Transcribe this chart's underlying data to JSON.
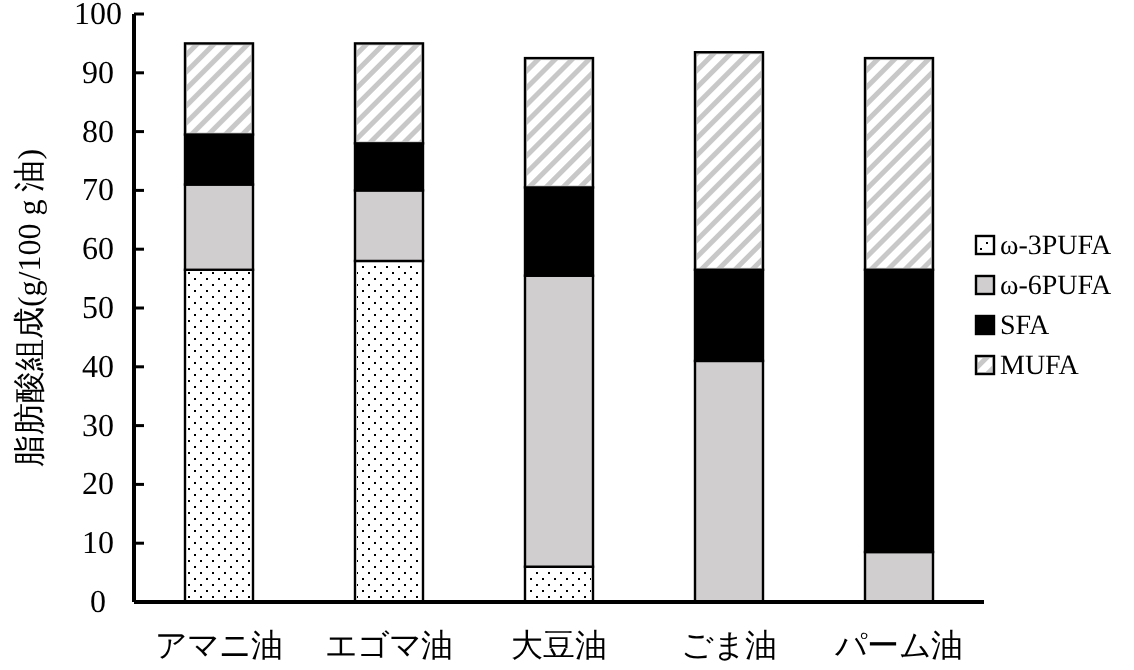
{
  "chart_data": {
    "type": "bar",
    "stacked": true,
    "ylabel": "脂肪酸組成(g/100 g 油)",
    "categories": [
      "アマニ油",
      "エゴマ油",
      "大豆油",
      "ごま油",
      "パーム油"
    ],
    "series": [
      {
        "name": "ω-3PUFA",
        "color": "#ffffff",
        "values": [
          56.5,
          58,
          6,
          0,
          0
        ]
      },
      {
        "name": "ω-6PUFA",
        "color": "#d0cece",
        "values": [
          14.5,
          12,
          49.5,
          41,
          8.5
        ]
      },
      {
        "name": "SFA",
        "color": "#000000",
        "values": [
          8.5,
          8,
          15,
          15.5,
          48
        ]
      },
      {
        "name": "MUFA",
        "color": "#c8c8c8",
        "values": [
          15.5,
          17,
          22,
          37,
          36
        ]
      }
    ],
    "ylim": [
      0,
      100
    ],
    "yticks": [
      0,
      10,
      20,
      30,
      40,
      50,
      60,
      70,
      80,
      90,
      100
    ],
    "legend": "right",
    "grid": false
  }
}
